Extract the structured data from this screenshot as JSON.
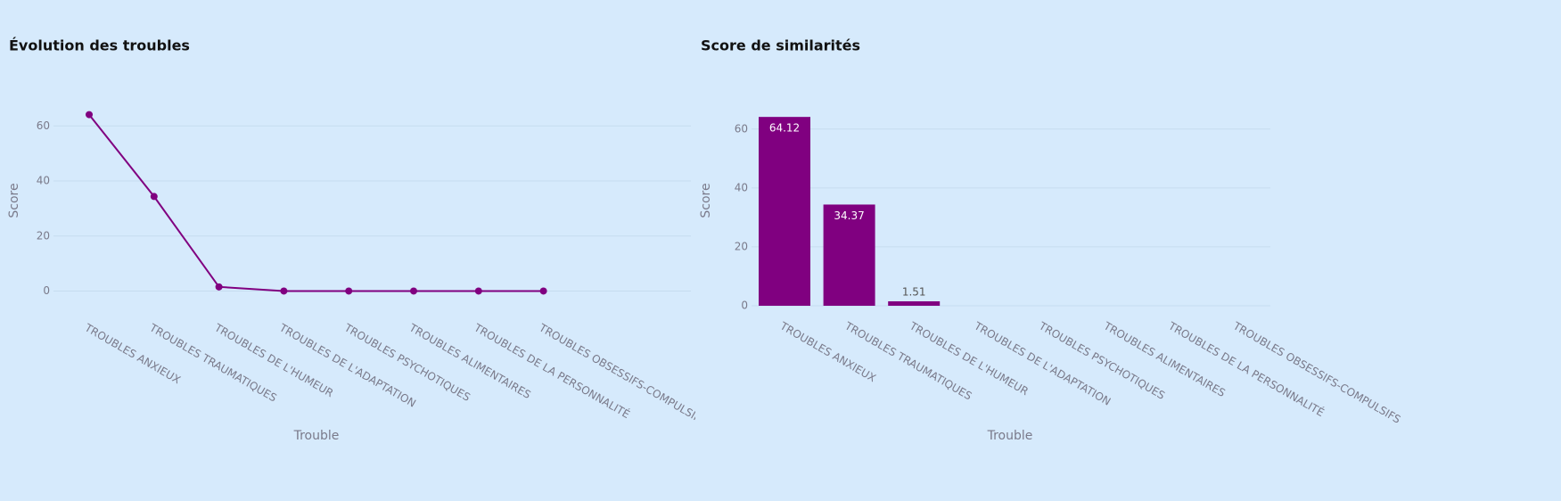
{
  "chart_data": [
    {
      "type": "line",
      "title": "Évolution des troubles",
      "x_label": "Trouble",
      "y_label": "Score",
      "color": "#800080",
      "categories": [
        "TROUBLES ANXIEUX",
        "TROUBLES TRAUMATIQUES",
        "TROUBLES DE L'HUMEUR",
        "TROUBLES DE L'ADAPTATION",
        "TROUBLES PSYCHOTIQUES",
        "TROUBLES ALIMENTAIRES",
        "TROUBLES DE LA PERSONNALITÉ",
        "TROUBLES OBSESSIFS-COMPULSIFS"
      ],
      "values": [
        64.12,
        34.37,
        1.51,
        0,
        0,
        0,
        0,
        0
      ],
      "ylim": [
        -6,
        75
      ],
      "yticks": [
        0,
        20,
        40,
        60
      ],
      "grid": true
    },
    {
      "type": "bar",
      "title": "Score de similarités",
      "x_label": "Trouble",
      "y_label": "Score",
      "color": "#800080",
      "categories": [
        "TROUBLES ANXIEUX",
        "TROUBLES TRAUMATIQUES",
        "TROUBLES DE L'HUMEUR",
        "TROUBLES DE L'ADAPTATION",
        "TROUBLES PSYCHOTIQUES",
        "TROUBLES ALIMENTAIRES",
        "TROUBLES DE LA PERSONNALITÉ",
        "TROUBLES OBSESSIFS-COMPULSIFS"
      ],
      "values": [
        64.12,
        34.37,
        1.51,
        0,
        0,
        0,
        0,
        0
      ],
      "ylim": [
        0,
        67.5
      ],
      "yticks": [
        0,
        20,
        40,
        60
      ],
      "grid": true
    }
  ]
}
